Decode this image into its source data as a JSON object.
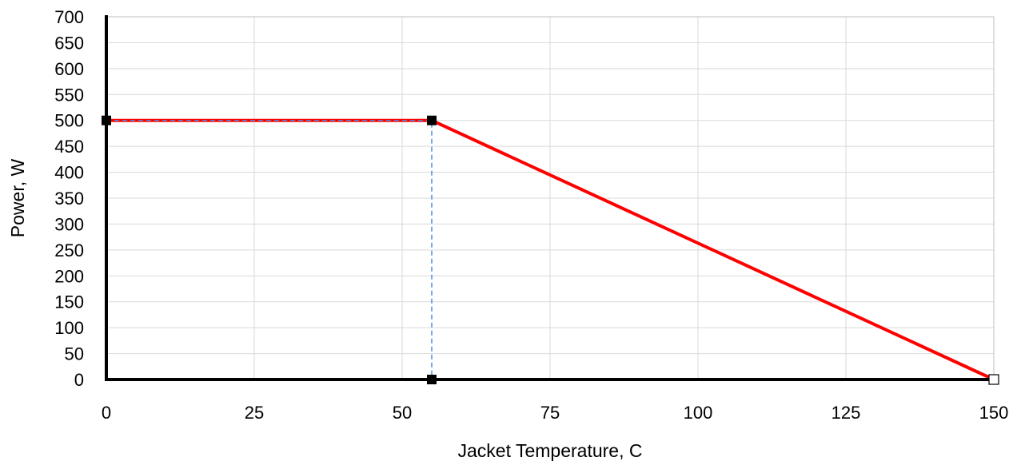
{
  "chart_data": {
    "type": "line",
    "title": "",
    "xlabel": "Jacket Temperature, C",
    "ylabel": "Power, W",
    "xlim": [
      0,
      150
    ],
    "ylim": [
      0,
      700
    ],
    "xticks": [
      0,
      25,
      50,
      75,
      100,
      125,
      150
    ],
    "yticks": [
      0,
      50,
      100,
      150,
      200,
      250,
      300,
      350,
      400,
      450,
      500,
      550,
      600,
      650,
      700
    ],
    "grid": true,
    "legend": "none",
    "series": [
      {
        "style": "solid",
        "color": "#ff0000",
        "x": [
          0,
          55,
          150
        ],
        "y": [
          500,
          500,
          0
        ]
      },
      {
        "style": "dashed",
        "color": "#4a8fd6",
        "x": [
          0,
          55,
          55
        ],
        "y": [
          500,
          500,
          0
        ]
      }
    ],
    "markers": [
      {
        "x": 0,
        "y": 500,
        "shape": "square",
        "fill": "#000000"
      },
      {
        "x": 55,
        "y": 500,
        "shape": "square",
        "fill": "#000000"
      },
      {
        "x": 55,
        "y": 0,
        "shape": "square",
        "fill": "#000000"
      },
      {
        "x": 150,
        "y": 0,
        "shape": "square",
        "fill": "none"
      }
    ]
  }
}
